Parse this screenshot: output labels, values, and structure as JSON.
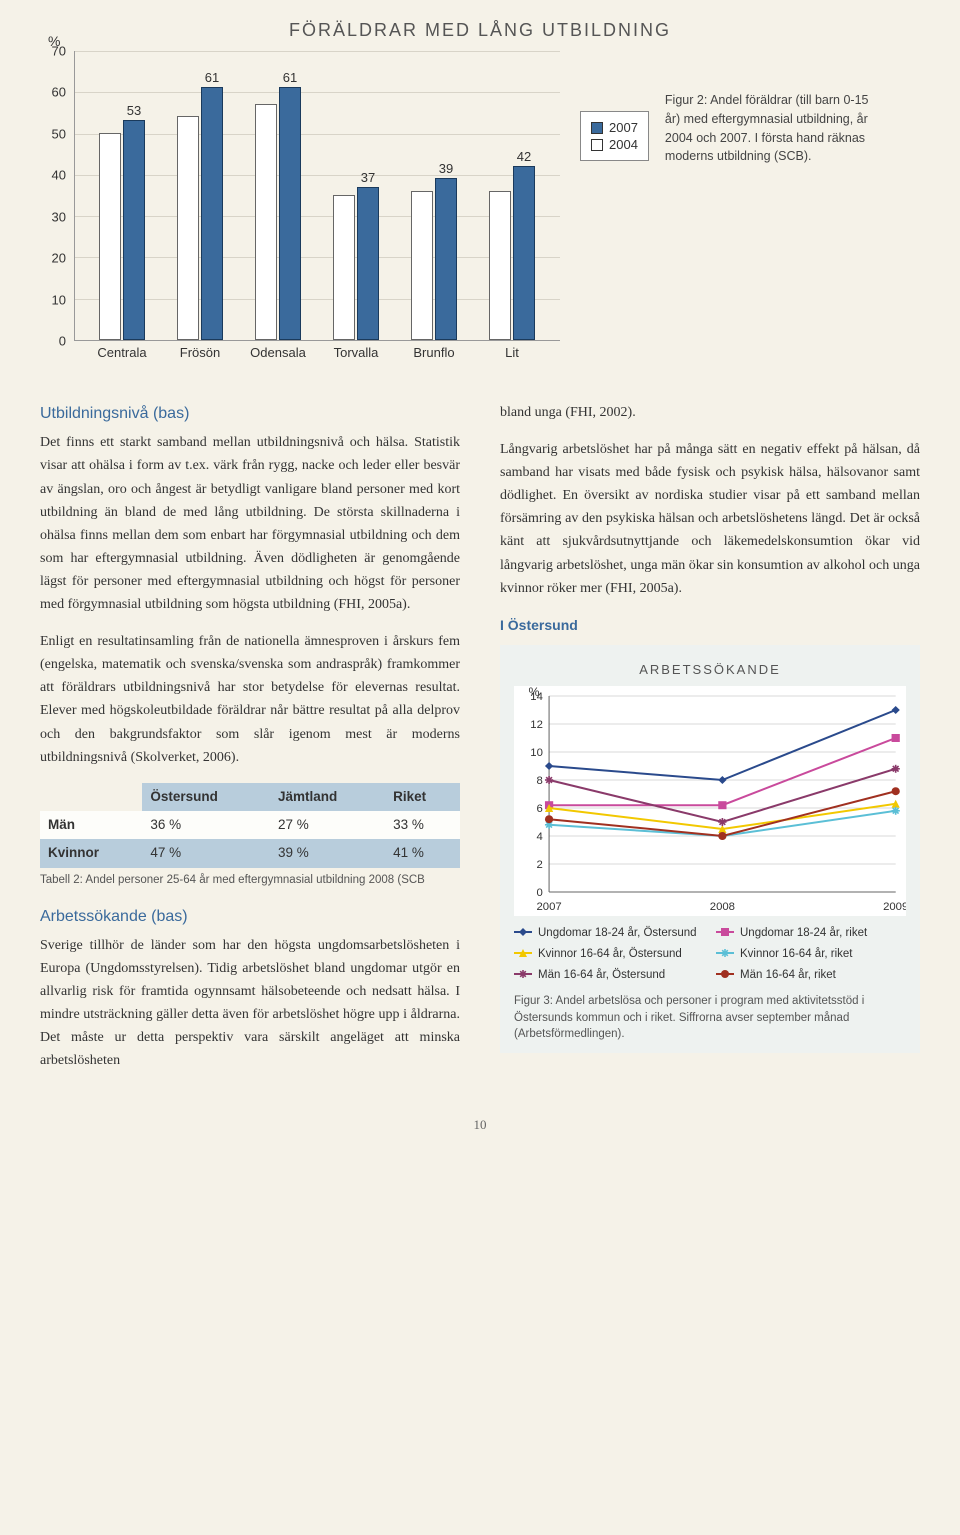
{
  "bar_chart": {
    "title": "FÖRÄLDRAR MED LÅNG UTBILDNING",
    "y_unit": "%",
    "ymax": 70,
    "ytick_step": 10,
    "categories": [
      "Centrala",
      "Frösön",
      "Odensala",
      "Torvalla",
      "Brunflo",
      "Lit"
    ],
    "series": [
      {
        "name": "2007",
        "color": "#3a6a9c",
        "values_label_visible": true,
        "values": [
          53,
          61,
          61,
          37,
          39,
          42
        ],
        "values_2004": [
          50,
          54,
          57,
          35,
          36,
          36
        ]
      },
      {
        "name": "2004",
        "color": "#ffffff"
      }
    ],
    "legend": [
      "2007",
      "2004"
    ],
    "caption": "Figur 2: Andel föräldrar (till barn 0-15 år) med eftergymnasial utbildning, år 2004 och 2007. I första hand räknas moderns utbildning (SCB)."
  },
  "left": {
    "h_utb": "Utbildningsnivå (bas)",
    "p1": "Det finns ett starkt samband mellan utbildningsnivå och hälsa. Statistik visar att ohälsa i form av t.ex. värk från rygg, nacke och leder eller besvär av ängslan, oro och ångest är betydligt vanligare bland personer med kort utbildning än bland de med lång utbildning. De största skillnaderna i ohälsa finns mellan dem som enbart har förgymnasial utbildning och dem som har eftergymnasial utbildning. Även dödligheten är genomgående lägst för personer med eftergymnasial utbildning och högst för personer med förgymnasial utbildning som högsta utbildning (FHI, 2005a).",
    "p2": "Enligt en resultatinsamling från de nationella ämnesproven i årskurs fem (engelska, matematik och svenska/svenska som andraspråk) framkommer att föräldrars utbildningsnivå har stor betydelse för elevernas resultat. Elever med högskoleutbildade föräldrar når bättre resultat på alla delprov och den bakgrundsfaktor som slår igenom mest är moderns utbildningsnivå (Skolverket, 2006).",
    "table": {
      "cols": [
        "",
        "Östersund",
        "Jämtland",
        "Riket"
      ],
      "rows": [
        [
          "Män",
          "36 %",
          "27 %",
          "33 %"
        ],
        [
          "Kvinnor",
          "47 %",
          "39 %",
          "41 %"
        ]
      ],
      "caption": "Tabell 2: Andel personer 25-64 år med eftergymnasial utbildning 2008 (SCB"
    },
    "h_arb": "Arbetssökande (bas)",
    "p3": "Sverige tillhör de länder som har den högsta ungdomsarbetslösheten i Europa (Ungdomsstyrelsen). Tidig arbetslöshet bland ungdomar utgör en allvarlig risk för framtida ogynnsamt hälsobeteende och nedsatt hälsa. I mindre utsträckning gäller detta även för arbetslöshet högre upp i åldrarna. Det måste ur detta perspektiv vara särskilt angeläget att minska arbetslösheten"
  },
  "right": {
    "p1": "bland unga (FHI, 2002).",
    "p2": "Långvarig arbetslöshet har på många sätt en negativ effekt på hälsan, då samband har visats med både fysisk och psykisk hälsa, hälsovanor samt dödlighet. En översikt av nordiska studier visar på ett samband mellan försämring av den psykiska hälsan och arbetslöshetens längd. Det är också känt att sjukvårdsutnyttjande och läkemedelskonsumtion ökar vid långvarig arbetslöshet, unga män ökar sin konsumtion av alkohol och unga kvinnor röker mer (FHI, 2005a).",
    "sub": "I Östersund"
  },
  "line_chart": {
    "title": "ARBETSSÖKANDE",
    "y_unit": "%",
    "ymax": 14,
    "ytick_step": 2,
    "x_labels": [
      "2007",
      "2008",
      "2009"
    ],
    "series": [
      {
        "name": "Ungdomar 18-24 år, Östersund",
        "color": "#2a4a8c",
        "marker": "diamond",
        "values": [
          9.0,
          8.0,
          13.0
        ]
      },
      {
        "name": "Ungdomar 18-24 år, riket",
        "color": "#c94a9c",
        "marker": "square",
        "values": [
          6.2,
          6.2,
          11.0
        ]
      },
      {
        "name": "Kvinnor 16-64 år, Östersund",
        "color": "#f2c800",
        "marker": "triangle",
        "values": [
          6.0,
          4.5,
          6.3
        ]
      },
      {
        "name": "Kvinnor 16-64 år, riket",
        "color": "#5bbfd6",
        "marker": "star",
        "values": [
          4.8,
          4.0,
          5.8
        ]
      },
      {
        "name": "Män 16-64 år, Östersund",
        "color": "#8a3a6a",
        "marker": "star",
        "values": [
          8.0,
          5.0,
          8.8
        ]
      },
      {
        "name": "Män 16-64 år, riket",
        "color": "#a03020",
        "marker": "circle",
        "values": [
          5.2,
          4.0,
          7.2
        ]
      }
    ],
    "caption": "Figur 3: Andel arbetslösa och personer i program med aktivitetsstöd i Östersunds kommun och i riket. Siffrorna avser september månad (Arbetsförmedlingen)."
  },
  "page_number": "10"
}
